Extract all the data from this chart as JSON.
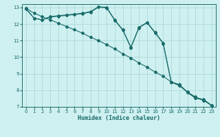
{
  "xlabel": "Humidex (Indice chaleur)",
  "ylabel": "",
  "bg_color": "#cff0f0",
  "line_color": "#1a6b6b",
  "grid_color": "#aad8d8",
  "xlim": [
    -0.5,
    23.5
  ],
  "ylim": [
    7,
    13.2
  ],
  "xticks": [
    0,
    1,
    2,
    3,
    4,
    5,
    6,
    7,
    8,
    9,
    10,
    11,
    12,
    13,
    14,
    15,
    16,
    17,
    18,
    19,
    20,
    21,
    22,
    23
  ],
  "yticks": [
    7,
    8,
    9,
    10,
    11,
    12,
    13
  ],
  "line1_x": [
    0,
    1,
    2,
    3,
    4,
    5,
    6,
    7,
    8,
    9,
    10,
    11,
    12,
    13,
    14,
    15,
    16,
    17,
    18,
    19,
    20,
    21,
    22,
    23
  ],
  "line1_y": [
    12.95,
    12.35,
    12.25,
    12.45,
    12.5,
    12.55,
    12.6,
    12.65,
    12.75,
    13.05,
    13.0,
    12.25,
    11.65,
    10.6,
    11.8,
    12.1,
    11.5,
    10.85,
    8.5,
    8.35,
    7.9,
    7.55,
    7.45,
    7.1
  ],
  "line2_x": [
    0,
    1,
    2,
    3,
    4,
    5,
    6,
    7,
    8,
    9,
    10,
    11,
    12,
    13,
    14,
    15,
    16,
    17,
    18,
    19,
    20,
    21,
    22,
    23
  ],
  "line2_y": [
    12.9,
    12.35,
    12.25,
    12.42,
    12.47,
    12.52,
    12.57,
    12.62,
    12.72,
    13.02,
    12.97,
    12.22,
    11.62,
    10.57,
    11.77,
    12.07,
    11.47,
    10.82,
    8.47,
    8.32,
    7.87,
    7.52,
    7.42,
    7.07
  ],
  "line3_x": [
    0,
    1,
    2,
    3,
    4,
    5,
    6,
    7,
    8,
    9,
    10,
    11,
    12,
    13,
    14,
    15,
    16,
    17,
    18,
    19,
    20,
    21,
    22,
    23
  ],
  "line3_y": [
    12.95,
    12.65,
    12.45,
    12.25,
    12.05,
    11.85,
    11.65,
    11.45,
    11.2,
    11.0,
    10.75,
    10.5,
    10.2,
    9.95,
    9.65,
    9.4,
    9.1,
    8.85,
    8.5,
    8.28,
    7.9,
    7.6,
    7.38,
    7.1
  ]
}
